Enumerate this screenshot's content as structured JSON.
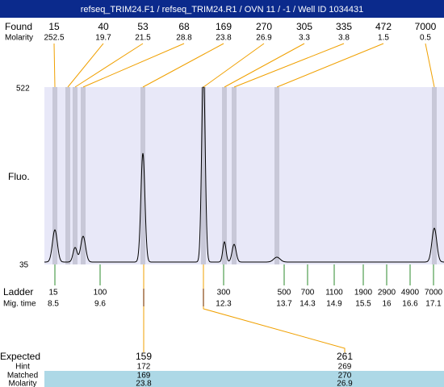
{
  "header": {
    "title": "refseq_TRIM24.F1 / refseq_TRIM24.R1 / OVN 11 / -1 / Well ID 1034431"
  },
  "found": {
    "label": "Found",
    "molarity_label": "Molarity",
    "peaks": [
      {
        "size": 15,
        "molarity": 252.5
      },
      {
        "size": 40,
        "molarity": 19.7
      },
      {
        "size": 53,
        "molarity": 21.5
      },
      {
        "size": 68,
        "molarity": 28.8
      },
      {
        "size": 169,
        "molarity": 23.8
      },
      {
        "size": 270,
        "molarity": 26.9
      },
      {
        "size": 305,
        "molarity": 3.3
      },
      {
        "size": 335,
        "molarity": 3.8
      },
      {
        "size": 472,
        "molarity": 1.5
      },
      {
        "size": 7000,
        "molarity": 0.5
      }
    ]
  },
  "plot": {
    "y_label": "Fluo.",
    "y_top": 522,
    "y_bottom": 35
  },
  "ladder": {
    "label": "Ladder",
    "mig_label": "Mig. time",
    "sizes": [
      15,
      100,
      300,
      500,
      700,
      1100,
      1900,
      2900,
      4900,
      7000
    ],
    "mig_times": [
      8.5,
      9.6,
      12.3,
      13.7,
      14.3,
      14.9,
      15.5,
      16,
      16.6,
      17.1
    ]
  },
  "expected": {
    "label": "Expected",
    "hint_label": "Hint",
    "matched_label": "Matched",
    "molarity_label": "Molarity",
    "columns": [
      {
        "expected": 159,
        "hint": 172,
        "matched": 169,
        "molarity": 23.8
      },
      {
        "expected": 261,
        "hint": 269,
        "matched": 270,
        "molarity": 26.9
      }
    ]
  }
}
